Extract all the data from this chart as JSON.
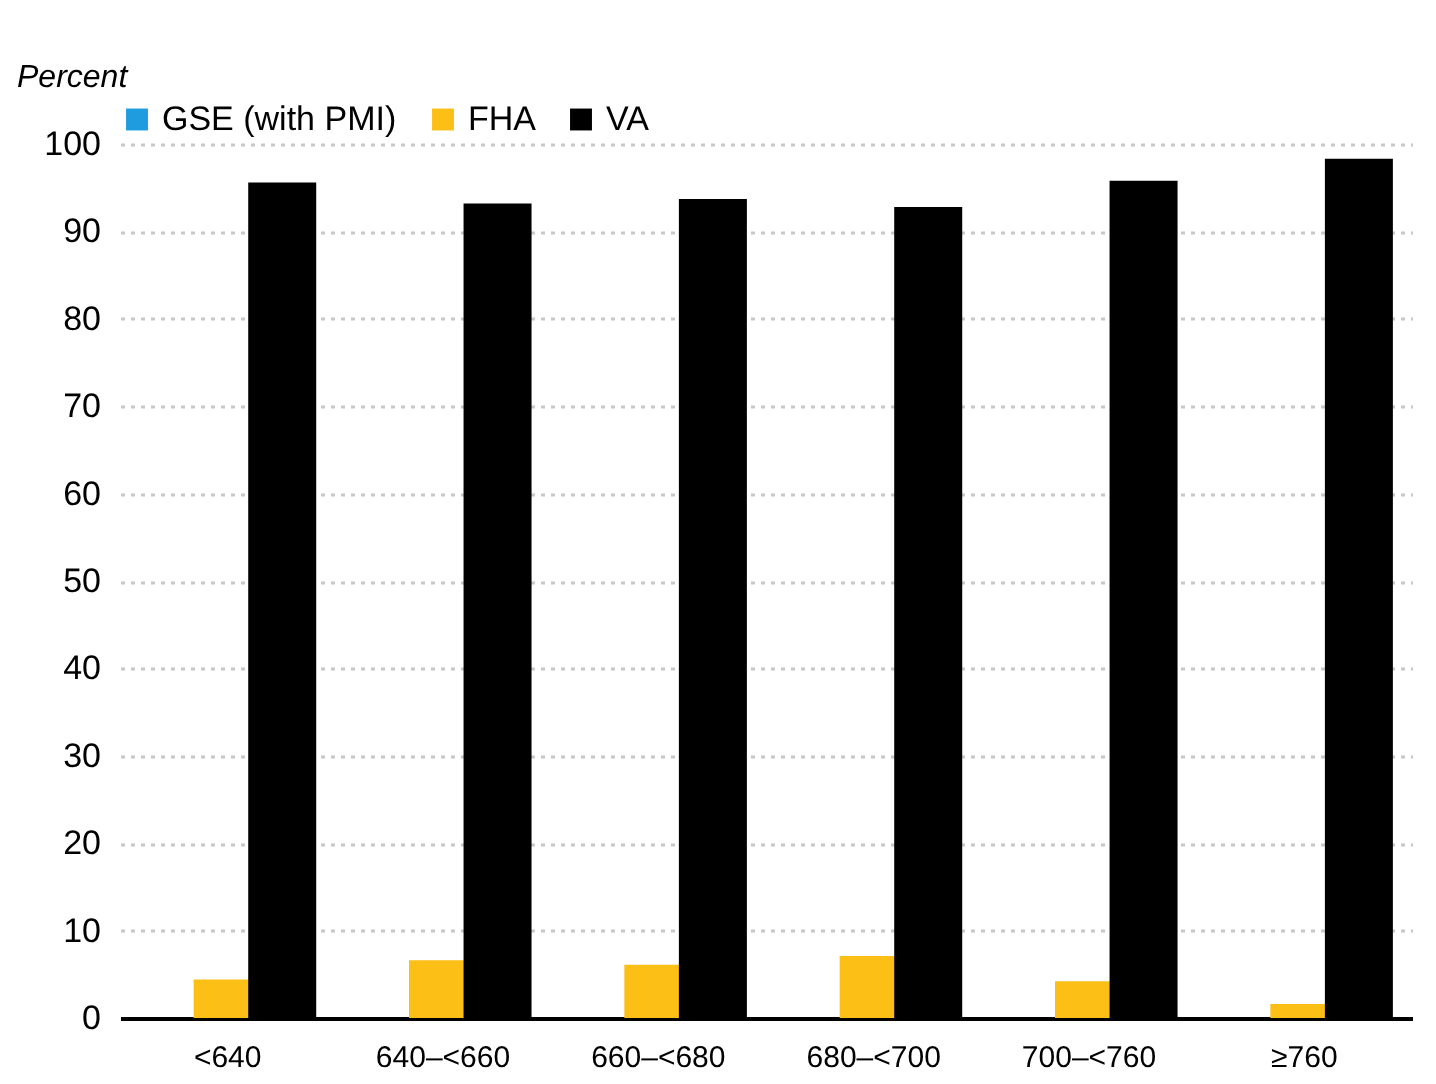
{
  "chart_data": {
    "type": "bar",
    "ylabel": "Percent",
    "categories": [
      "<640",
      "640–<660",
      "660–<680",
      "680–<700",
      "700–<760",
      "≥760"
    ],
    "series": [
      {
        "name": "GSE (with PMI)",
        "color": "#1f9be0",
        "values": [
          0,
          0,
          0,
          0,
          0,
          0
        ]
      },
      {
        "name": "FHA",
        "color": "#fbbf16",
        "values": [
          4.4,
          6.6,
          6.1,
          7.1,
          4.2,
          1.6
        ]
      },
      {
        "name": "VA",
        "color": "#000000",
        "values": [
          95.6,
          93.2,
          93.7,
          92.8,
          95.8,
          98.3
        ]
      }
    ],
    "ylim": [
      0,
      100
    ],
    "yticks": [
      0,
      10,
      20,
      30,
      40,
      50,
      60,
      70,
      80,
      90,
      100
    ],
    "grid": "y",
    "legend": "top"
  }
}
